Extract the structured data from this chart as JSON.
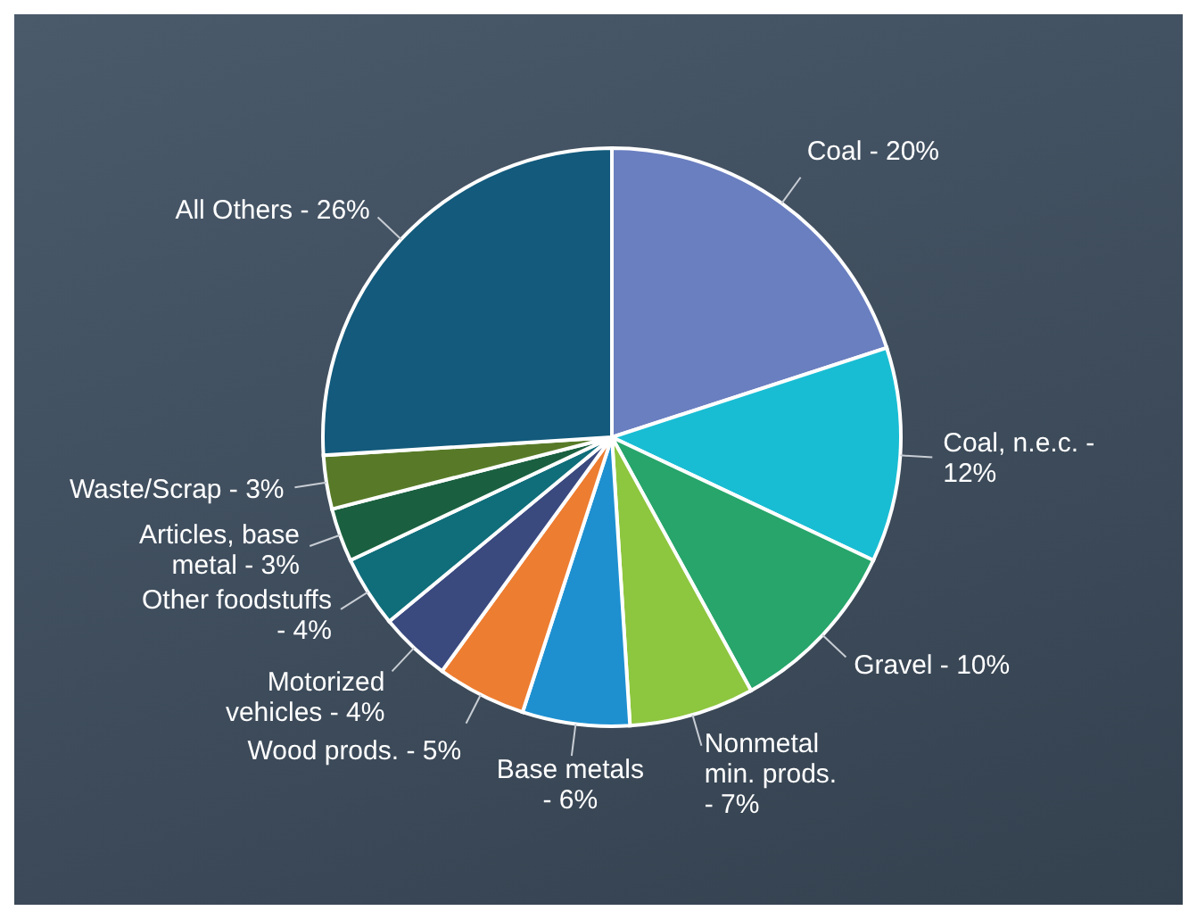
{
  "chart_data": {
    "type": "pie",
    "categories": [
      "Coal - 20%",
      "Coal, n.e.c. - 12%",
      "Gravel - 10%",
      "Nonmetal min. prods. - 7%",
      "Base metals - 6%",
      "Wood prods. - 5%",
      "Motorized vehicles - 4%",
      "Other foodstuffs - 4%",
      "Articles, base metal - 3%",
      "Waste/Scrap - 3%",
      "All Others - 26%"
    ],
    "values": [
      20,
      12,
      10,
      7,
      6,
      5,
      4,
      4,
      3,
      3,
      26
    ],
    "colors": [
      "#6a7fc0",
      "#19bdd3",
      "#27a56b",
      "#8dc63f",
      "#1e90d0",
      "#ed7d31",
      "#3a4a7f",
      "#0f6e7a",
      "#1a6040",
      "#587a28",
      "#135a7c"
    ]
  }
}
